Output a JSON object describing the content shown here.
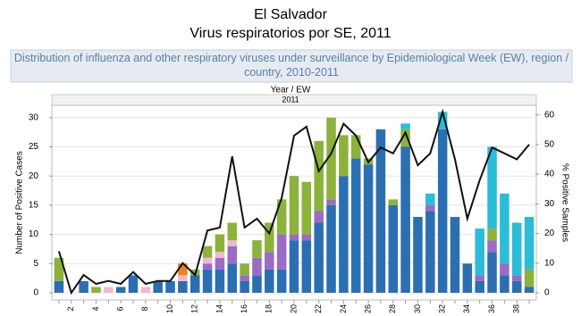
{
  "chart_data": {
    "type": "bar",
    "stacked": true,
    "title": "El Salvador",
    "subtitle": "Virus respiratorios por SE, 2011",
    "caption": "Distribution of influenza and other respiratory viruses under surveillance by Epidemiological Week (EW), region / country, 2010-2011",
    "x_header": "Year / EW",
    "x_group": "2011",
    "y_label": "Number of Positive Cases",
    "y2_label": "% Positive Samples",
    "categories": [
      null,
      "2",
      null,
      "4",
      null,
      "6",
      null,
      "8",
      null,
      "10",
      null,
      "12",
      null,
      "14",
      null,
      "16",
      null,
      "18",
      null,
      "20",
      null,
      "22",
      null,
      "24",
      null,
      "26",
      null,
      "28",
      null,
      "30",
      null,
      "32",
      null,
      "34",
      null,
      "36",
      null,
      "38",
      null
    ],
    "series": [
      {
        "color": "#2b6fb2",
        "values": [
          2,
          0,
          2,
          0,
          0,
          1,
          3,
          0,
          2,
          2,
          2,
          3,
          4,
          4,
          5,
          2,
          3,
          4,
          4,
          9,
          9,
          12,
          15,
          20,
          23,
          22,
          28,
          15,
          25,
          13,
          14,
          28,
          13,
          5,
          2,
          7,
          3,
          2,
          1
        ]
      },
      {
        "color": "#9a6cc4",
        "values": [
          0,
          0,
          0,
          0,
          0,
          0,
          0,
          0,
          0,
          0,
          0,
          0,
          1,
          2,
          3,
          1,
          3,
          3,
          6,
          1,
          1,
          2,
          1,
          0,
          0,
          0,
          0,
          0,
          0,
          0,
          1,
          0,
          0,
          0,
          1,
          2,
          2,
          1,
          0
        ]
      },
      {
        "color": "#f2b8d4",
        "values": [
          0,
          0,
          0,
          0,
          1,
          0,
          0,
          1,
          0,
          0,
          1,
          0,
          1,
          1,
          1,
          0,
          0,
          0,
          0,
          0,
          0,
          0,
          0,
          0,
          0,
          0,
          0,
          0,
          0,
          0,
          0,
          0,
          0,
          0,
          0,
          0,
          0,
          0,
          0
        ]
      },
      {
        "color": "#f0821e",
        "values": [
          0,
          0,
          0,
          0,
          0,
          0,
          0,
          0,
          0,
          0,
          2,
          0,
          0,
          0,
          0,
          0,
          0,
          0,
          0,
          0,
          0,
          0,
          0,
          0,
          0,
          0,
          0,
          0,
          0,
          0,
          0,
          0,
          0,
          0,
          0,
          0,
          0,
          0,
          0
        ]
      },
      {
        "color": "#8cb23c",
        "values": [
          4,
          0,
          0,
          1,
          0,
          0,
          0,
          0,
          0,
          0,
          0,
          1,
          2,
          3,
          3,
          2,
          3,
          5,
          6,
          10,
          9,
          12,
          14,
          7,
          4,
          1,
          0,
          1,
          3,
          0,
          0,
          0,
          0,
          0,
          0,
          2,
          0,
          0,
          3
        ]
      },
      {
        "color": "#2bbcd8",
        "values": [
          0,
          0,
          0,
          0,
          0,
          0,
          0,
          0,
          0,
          0,
          0,
          0,
          0,
          0,
          0,
          0,
          0,
          0,
          0,
          0,
          0,
          0,
          0,
          0,
          0,
          0,
          0,
          0,
          1,
          0,
          2,
          3,
          0,
          0,
          8,
          14,
          12,
          9,
          9
        ]
      },
      {
        "color": "#111111",
        "type": "line",
        "axis": "y2",
        "values": [
          14,
          0,
          6,
          3,
          4,
          3,
          7,
          3,
          4,
          4,
          10,
          6,
          21,
          22,
          46,
          22,
          25,
          20,
          32,
          53,
          56,
          41,
          47,
          57,
          53,
          44,
          49,
          47,
          54,
          43,
          47,
          61,
          45,
          25,
          38,
          49,
          47,
          45,
          50
        ]
      }
    ],
    "ylim": [
      0,
      31.5
    ],
    "yticks": [
      0,
      5,
      10,
      15,
      20,
      25,
      30
    ],
    "y2lim": [
      0,
      62
    ],
    "y2ticks": [
      0,
      10,
      20,
      30,
      40,
      50,
      60
    ],
    "grid": true
  }
}
